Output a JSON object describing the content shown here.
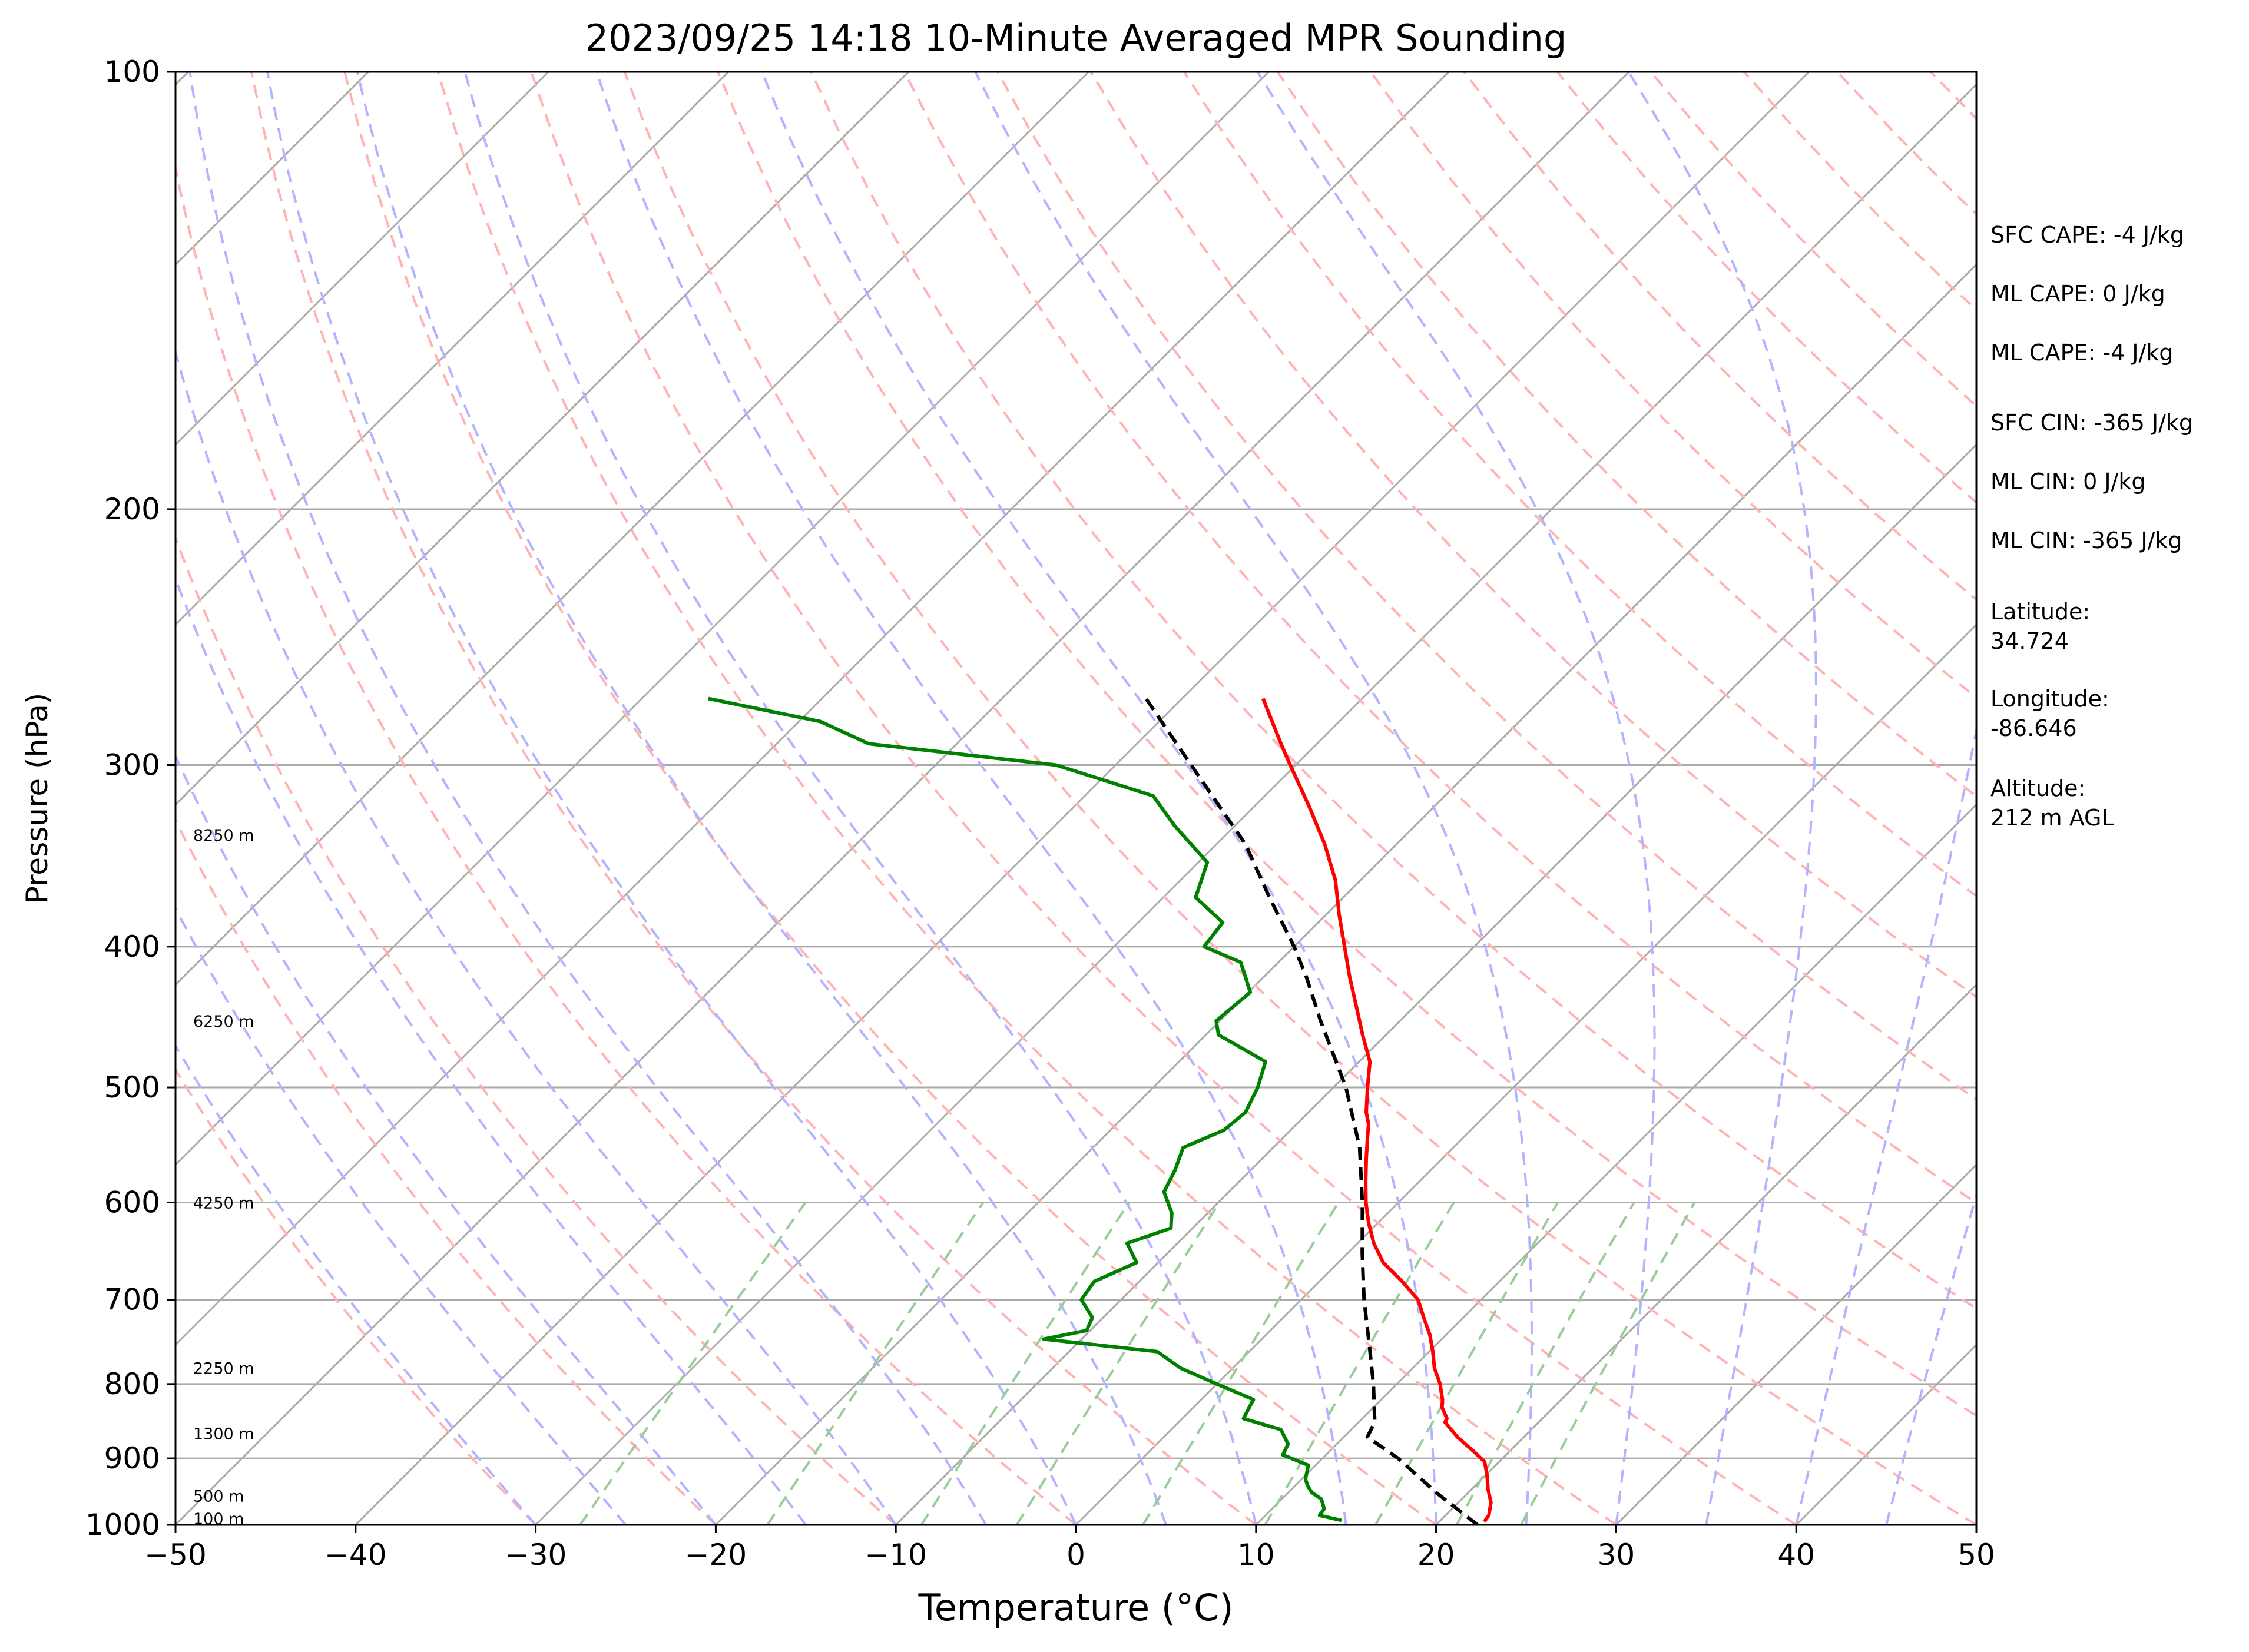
{
  "chart_data": {
    "type": "line",
    "title": "2023/09/25 14:18 10-Minute Averaged MPR Sounding",
    "xlabel": "Temperature (°C)",
    "ylabel": "Pressure (hPa)",
    "xlim": [
      -50,
      50
    ],
    "ylim": [
      1000,
      100
    ],
    "y_scale": "log",
    "skew": true,
    "grid": true,
    "x_ticks": [
      "−50",
      "−40",
      "−30",
      "−20",
      "−10",
      "0",
      "10",
      "20",
      "30",
      "40",
      "50"
    ],
    "y_ticks": [
      "100",
      "200",
      "300",
      "400",
      "500",
      "600",
      "700",
      "800",
      "900",
      "1000"
    ],
    "height_labels": [
      {
        "p": 990,
        "label": "100 m"
      },
      {
        "p": 955,
        "label": "500 m"
      },
      {
        "p": 865,
        "label": "1300 m"
      },
      {
        "p": 780,
        "label": "2250 m"
      },
      {
        "p": 600,
        "label": "4250 m"
      },
      {
        "p": 450,
        "label": "6250 m"
      },
      {
        "p": 335,
        "label": "8250 m"
      }
    ],
    "series": [
      {
        "role": "temperature",
        "color": "#ff0000",
        "p": [
          995,
          985,
          965,
          945,
          925,
          905,
          890,
          870,
          850,
          845,
          830,
          820,
          810,
          800,
          780,
          760,
          740,
          720,
          700,
          680,
          660,
          640,
          620,
          600,
          580,
          560,
          540,
          530,
          520,
          500,
          480,
          460,
          440,
          420,
          400,
          380,
          360,
          340,
          320,
          300,
          290,
          270
        ],
        "t": [
          22.5,
          22.4,
          21.8,
          20.9,
          20.1,
          19.2,
          18.0,
          16.3,
          14.8,
          14.7,
          13.8,
          13.4,
          12.9,
          12.4,
          11.2,
          10.2,
          9.1,
          7.8,
          6.5,
          4.6,
          2.5,
          0.9,
          -0.5,
          -1.8,
          -3.0,
          -4.2,
          -5.4,
          -6.0,
          -6.8,
          -8.1,
          -9.4,
          -11.3,
          -13.2,
          -15.2,
          -17.2,
          -19.3,
          -21.4,
          -24.0,
          -27.0,
          -30.3,
          -32.0,
          -35.5
        ]
      },
      {
        "role": "dewpoint",
        "color": "#008000",
        "p": [
          993,
          985,
          975,
          960,
          950,
          940,
          930,
          910,
          895,
          880,
          860,
          845,
          830,
          820,
          800,
          780,
          760,
          745,
          735,
          720,
          700,
          680,
          660,
          640,
          625,
          610,
          590,
          570,
          550,
          535,
          520,
          500,
          480,
          460,
          450,
          430,
          410,
          400,
          385,
          370,
          350,
          330,
          315,
          300,
          290,
          280,
          270
        ],
        "t": [
          14.5,
          13.0,
          12.9,
          12.2,
          11.3,
          10.7,
          10.2,
          9.6,
          7.6,
          7.3,
          6.1,
          3.4,
          3.1,
          2.9,
          0.0,
          -2.9,
          -5.1,
          -12.1,
          -10.2,
          -10.6,
          -12.2,
          -12.5,
          -11.2,
          -12.8,
          -11.2,
          -12.0,
          -13.6,
          -14.2,
          -15.0,
          -13.7,
          -13.5,
          -14.2,
          -15.2,
          -19.3,
          -20.2,
          -19.9,
          -22.1,
          -25.0,
          -25.3,
          -28.2,
          -29.5,
          -33.4,
          -36.2,
          -43.3,
          -54.9,
          -58.8,
          -66.3
        ]
      },
      {
        "role": "parcel",
        "color": "#000000",
        "p": [
          1000,
          950,
          900,
          870,
          850,
          800,
          750,
          700,
          650,
          600,
          550,
          500,
          450,
          420,
          400,
          370,
          340,
          300,
          270
        ],
        "t": [
          22.3,
          18.2,
          14.2,
          11.3,
          10.9,
          8.7,
          6.2,
          3.5,
          0.8,
          -2.0,
          -5.2,
          -9.3,
          -14.4,
          -17.6,
          -20.0,
          -24.1,
          -28.4,
          -35.8,
          -42.0
        ]
      }
    ],
    "info": {
      "sfc_cape": "SFC CAPE: -4 J/kg",
      "ml_cape": "ML CAPE: 0 J/kg",
      "ml_cape_2": "ML CAPE: -4 J/kg",
      "sfc_cin": "SFC CIN: -365 J/kg",
      "ml_cin": "ML CIN: 0 J/kg",
      "ml_cin_2": "ML CIN: -365 J/kg",
      "latitude_label": "Latitude:",
      "latitude_value": "34.724",
      "longitude_label": "Longitude:",
      "longitude_value": "-86.646",
      "altitude_label": "Altitude:",
      "altitude_value": "212 m AGL"
    },
    "colors": {
      "isotherm": "#aaaaaa",
      "isobar": "#aaaaaa",
      "dry_adiabat": "#ffb3b3",
      "moist_adiabat": "#b3b3ff",
      "mixing_ratio": "#99cc99"
    }
  }
}
